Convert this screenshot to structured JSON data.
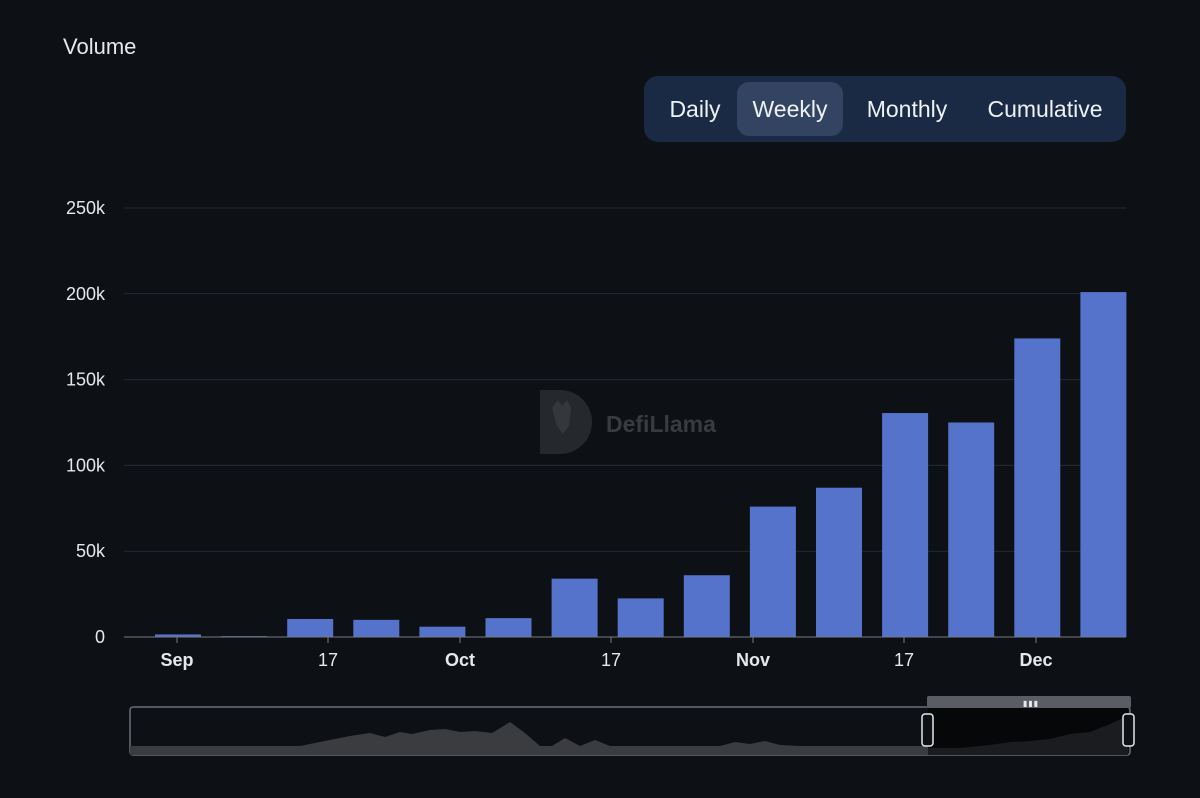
{
  "header": {
    "title": "Volume"
  },
  "toggle": {
    "options": [
      {
        "label": "Daily",
        "active": false
      },
      {
        "label": "Weekly",
        "active": true
      },
      {
        "label": "Monthly",
        "active": false
      },
      {
        "label": "Cumulative",
        "active": false
      }
    ]
  },
  "watermark": {
    "text": "DefiLlama"
  },
  "colors": {
    "bar": "#5673cc",
    "background": "#0d1014",
    "toggle_bg": "#1a2a44",
    "toggle_active": "#334463"
  },
  "chart_data": {
    "type": "bar",
    "title": "Volume",
    "x_tick_labels": [
      "Sep",
      "17",
      "Oct",
      "17",
      "Nov",
      "17",
      "Dec"
    ],
    "y_tick_labels": [
      "0",
      "50k",
      "100k",
      "150k",
      "200k",
      "250k"
    ],
    "ylim": [
      0,
      250000
    ],
    "grid": true,
    "series": [
      {
        "values": [
          1500,
          500,
          10500,
          10000,
          6000,
          11000,
          34000,
          22500,
          36000,
          76000,
          87000,
          130500,
          125000,
          174000,
          201000
        ]
      }
    ]
  }
}
